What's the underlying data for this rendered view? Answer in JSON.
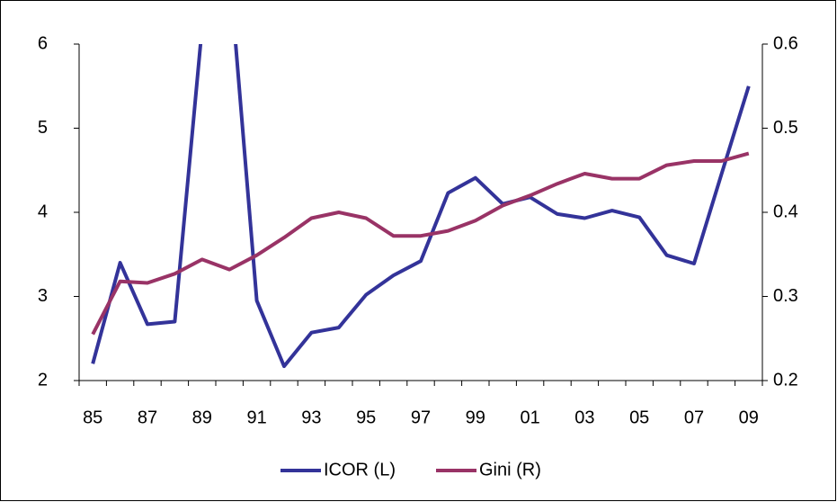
{
  "chart_data": {
    "type": "line",
    "categories": [
      "85",
      null,
      "87",
      null,
      "89",
      null,
      "91",
      null,
      "93",
      null,
      "95",
      null,
      "97",
      null,
      "99",
      null,
      "01",
      null,
      "03",
      null,
      "05",
      null,
      "07",
      null,
      "09"
    ],
    "series": [
      {
        "name": "ICOR (L)",
        "color": "#333399",
        "axis": "y",
        "values": [
          2.2,
          3.4,
          2.67,
          2.7,
          6.2,
          6.9,
          2.95,
          2.17,
          2.57,
          2.63,
          3.02,
          3.25,
          3.42,
          4.23,
          4.41,
          4.1,
          4.18,
          3.98,
          3.93,
          4.02,
          3.94,
          3.49,
          3.39,
          4.45,
          5.5
        ]
      },
      {
        "name": "Gini (R)",
        "color": "#993366",
        "axis": "y2",
        "values": [
          0.255,
          0.318,
          0.316,
          0.327,
          0.344,
          0.332,
          0.349,
          0.37,
          0.393,
          0.4,
          0.393,
          0.372,
          0.372,
          0.378,
          0.39,
          0.408,
          0.42,
          0.434,
          0.446,
          0.44,
          0.44,
          0.456,
          0.461,
          0.461,
          0.47
        ]
      }
    ],
    "ylim": [
      2,
      6
    ],
    "yticks": [
      2,
      3,
      4,
      5,
      6
    ],
    "y2lim": [
      0.2,
      0.6
    ],
    "y2ticks": [
      0.2,
      0.3,
      0.4,
      0.5,
      0.6
    ],
    "legend": "bottom"
  }
}
